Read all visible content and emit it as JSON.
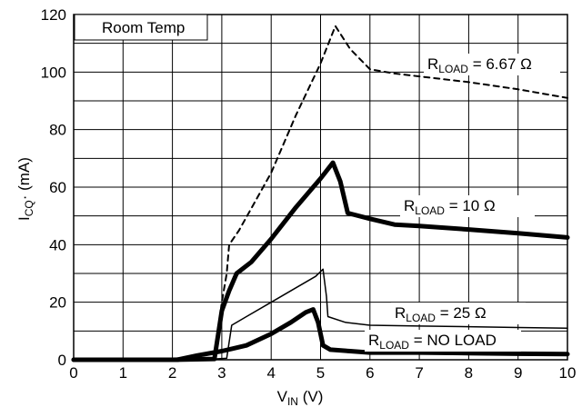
{
  "chart_data": {
    "type": "line",
    "title": "",
    "annotation_box": "Room Temp",
    "xlabel": {
      "main": "V",
      "sub": "IN",
      "unit": " (V)"
    },
    "ylabel": {
      "main": "I",
      "sub": "CQ",
      "unit": "· (mA)"
    },
    "xlim": [
      0,
      10
    ],
    "ylim": [
      0,
      120
    ],
    "x_ticks": [
      "0",
      "1",
      "2",
      "3",
      "4",
      "5",
      "6",
      "7",
      "8",
      "9",
      "10"
    ],
    "y_ticks": [
      "0",
      "20",
      "40",
      "60",
      "80",
      "100",
      "120"
    ],
    "grid": true,
    "series": [
      {
        "name": "RLOAD = 6.67 Ω",
        "label_main": "R",
        "label_sub": "LOAD",
        "label_rest": " = 6.67 Ω",
        "style": "dashed",
        "color": "#000000",
        "points": [
          [
            0,
            0
          ],
          [
            2,
            0
          ],
          [
            2.85,
            0.3
          ],
          [
            3.0,
            20
          ],
          [
            3.1,
            30
          ],
          [
            3.15,
            40
          ],
          [
            3.35,
            45
          ],
          [
            4,
            65
          ],
          [
            4.5,
            85
          ],
          [
            5,
            103
          ],
          [
            5.3,
            116
          ],
          [
            5.6,
            108
          ],
          [
            6.0,
            101
          ],
          [
            6.5,
            99.5
          ],
          [
            7,
            98.5
          ],
          [
            8,
            96.5
          ],
          [
            9,
            94
          ],
          [
            10,
            91
          ]
        ]
      },
      {
        "name": "RLOAD = 10 Ω",
        "label_main": "R",
        "label_sub": "LOAD",
        "label_rest": " = 10 Ω",
        "style": "thick",
        "color": "#000000",
        "points": [
          [
            0,
            0
          ],
          [
            2,
            0
          ],
          [
            2.85,
            0.3
          ],
          [
            3.0,
            17
          ],
          [
            3.15,
            24
          ],
          [
            3.3,
            30
          ],
          [
            3.6,
            34
          ],
          [
            4,
            42
          ],
          [
            4.5,
            53
          ],
          [
            5.0,
            63
          ],
          [
            5.25,
            68.5
          ],
          [
            5.4,
            62
          ],
          [
            5.55,
            51
          ],
          [
            6,
            49
          ],
          [
            6.5,
            47
          ],
          [
            7,
            46.5
          ],
          [
            8,
            45.3
          ],
          [
            9,
            44
          ],
          [
            10,
            42.5
          ]
        ]
      },
      {
        "name": "RLOAD = 25 Ω",
        "label_main": "R",
        "label_sub": "LOAD",
        "label_rest": " = 25 Ω",
        "style": "thin",
        "color": "#000000",
        "points": [
          [
            0,
            0
          ],
          [
            2,
            0
          ],
          [
            2.85,
            0.3
          ],
          [
            3.1,
            0.5
          ],
          [
            3.2,
            12
          ],
          [
            3.5,
            15
          ],
          [
            4,
            20
          ],
          [
            4.5,
            25
          ],
          [
            4.9,
            29
          ],
          [
            5.05,
            31.5
          ],
          [
            5.12,
            22
          ],
          [
            5.15,
            15
          ],
          [
            5.5,
            13
          ],
          [
            6,
            12
          ],
          [
            7,
            11.7
          ],
          [
            8,
            11.5
          ],
          [
            9,
            11.2
          ],
          [
            10,
            11
          ]
        ]
      },
      {
        "name": "RLOAD = NO LOAD",
        "label_main": "R",
        "label_sub": "LOAD",
        "label_rest": " = NO LOAD",
        "style": "thick",
        "color": "#000000",
        "points": [
          [
            0,
            0
          ],
          [
            1.5,
            0
          ],
          [
            2.1,
            0
          ],
          [
            2.5,
            1.5
          ],
          [
            3,
            3
          ],
          [
            3.5,
            5
          ],
          [
            4,
            9
          ],
          [
            4.4,
            13
          ],
          [
            4.7,
            16.5
          ],
          [
            4.85,
            17.5
          ],
          [
            4.95,
            13
          ],
          [
            5.05,
            5
          ],
          [
            5.2,
            3.5
          ],
          [
            5.6,
            3
          ],
          [
            6,
            2.5
          ],
          [
            7,
            2.5
          ],
          [
            8,
            2.3
          ],
          [
            9,
            2.1
          ],
          [
            10,
            2.0
          ]
        ]
      }
    ]
  }
}
